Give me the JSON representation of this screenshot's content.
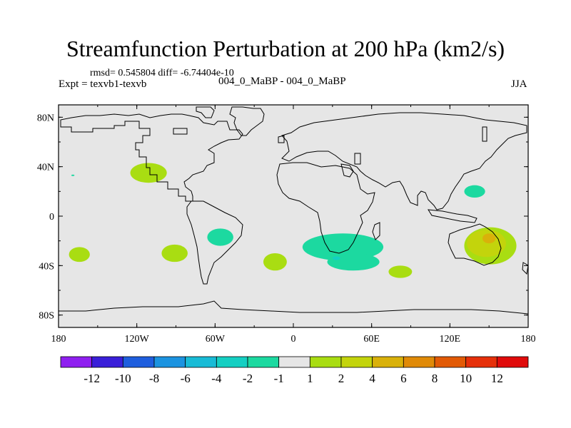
{
  "header": {
    "title": "Streamfunction Perturbation at 200 hPa (km2/s)",
    "stats": "rmsd= 0.545804 diff= -6.74404e-10",
    "expt": "Expt = texvb1-texvb",
    "case_pair": "004_0_MaBP - 004_0_MaBP",
    "season": "JJA"
  },
  "chart_data": {
    "type": "heatmap",
    "title": "Streamfunction Perturbation at 200 hPa (km2/s)",
    "xlabel": "",
    "ylabel": "",
    "xlim": [
      -180,
      180
    ],
    "ylim": [
      -90,
      90
    ],
    "x_ticks": [
      {
        "value": -180,
        "label": "180"
      },
      {
        "value": -120,
        "label": "120W"
      },
      {
        "value": -60,
        "label": "60W"
      },
      {
        "value": 0,
        "label": "0"
      },
      {
        "value": 60,
        "label": "60E"
      },
      {
        "value": 120,
        "label": "120E"
      },
      {
        "value": 180,
        "label": "180"
      }
    ],
    "y_ticks": [
      {
        "value": 80,
        "label": "80N"
      },
      {
        "value": 40,
        "label": "40N"
      },
      {
        "value": 0,
        "label": "0"
      },
      {
        "value": -40,
        "label": "40S"
      },
      {
        "value": -80,
        "label": "80S"
      }
    ],
    "background_level": "-1 to 1",
    "anomalies": [
      {
        "lon": -111,
        "lat": 35,
        "rx": 14,
        "ry": 8,
        "level": "1 to 2"
      },
      {
        "lon": -169,
        "lat": 33,
        "rx": 1.2,
        "ry": 0.6,
        "level": "-2 to -1"
      },
      {
        "lon": -56,
        "lat": -17,
        "rx": 10,
        "ry": 7,
        "level": "-2 to -1"
      },
      {
        "lon": -164,
        "lat": -31,
        "rx": 8,
        "ry": 6,
        "level": "1 to 2"
      },
      {
        "lon": -91,
        "lat": -30,
        "rx": 10,
        "ry": 7,
        "level": "1 to 2"
      },
      {
        "lon": -14,
        "lat": -37,
        "rx": 9,
        "ry": 7,
        "level": "1 to 2"
      },
      {
        "lon": 38,
        "lat": -25,
        "rx": 31,
        "ry": 11,
        "level": "-2 to -1"
      },
      {
        "lon": 46,
        "lat": -37,
        "rx": 20,
        "ry": 7,
        "level": "-2 to -1"
      },
      {
        "lon": 33,
        "lat": -34,
        "rx": 3,
        "ry": 1.5,
        "level": "-4 to -2"
      },
      {
        "lon": 82,
        "lat": -45,
        "rx": 9,
        "ry": 5,
        "level": "1 to 2"
      },
      {
        "lon": 139,
        "lat": 20,
        "rx": 8,
        "ry": 5,
        "level": "-2 to -1"
      },
      {
        "lon": 151,
        "lat": -24,
        "rx": 20,
        "ry": 15,
        "level": "1 to 2"
      },
      {
        "lon": 148,
        "lat": -22,
        "rx": 15,
        "ry": 11,
        "level": "2 to 4"
      },
      {
        "lon": 150,
        "lat": -18,
        "rx": 5,
        "ry": 4,
        "level": "4 to 6"
      }
    ],
    "colorbar": {
      "colors": [
        "#8f1ff0",
        "#3a1fd9",
        "#1e5ede",
        "#1b93e0",
        "#18bbd6",
        "#14cfc2",
        "#1cd9a0",
        "#e6e6e6",
        "#a9dd12",
        "#c3d40c",
        "#d9b10a",
        "#e08a07",
        "#e25a05",
        "#e6300a",
        "#e00b0b"
      ],
      "labels": [
        "-12",
        "-10",
        "-8",
        "-6",
        "-4",
        "-2",
        "-1",
        "1",
        "2",
        "4",
        "6",
        "8",
        "10",
        "12"
      ]
    }
  }
}
